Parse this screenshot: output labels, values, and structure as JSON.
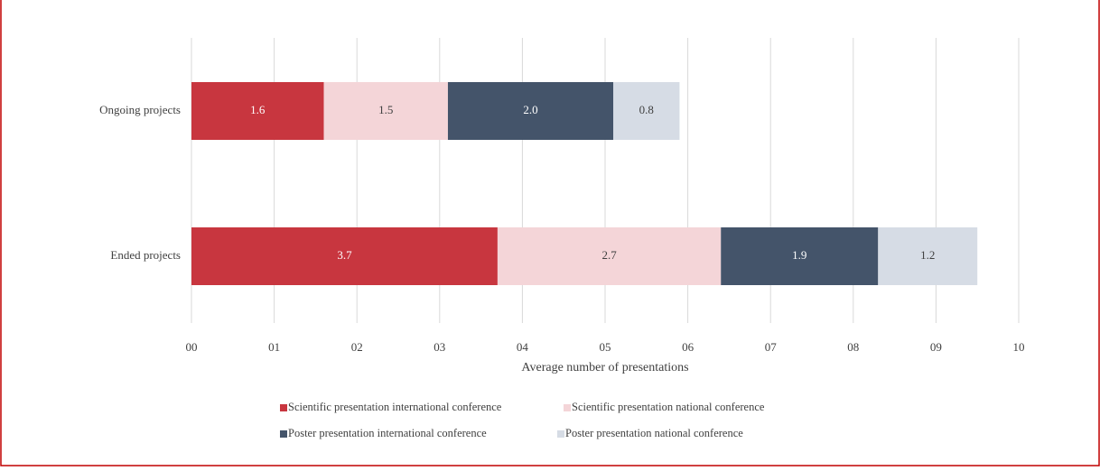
{
  "chart_data": {
    "type": "stacked-barh",
    "categories": [
      "Ongoing projects",
      "Ended projects"
    ],
    "series": [
      {
        "name": "Scientific presentation international conference",
        "color": "#c8363f",
        "values": [
          1.6,
          3.7
        ],
        "value_labels": [
          "1.6",
          "3.7"
        ]
      },
      {
        "name": "Scientific presentation national conference",
        "color": "#f4d5d8",
        "values": [
          1.5,
          2.7
        ],
        "value_labels": [
          "1.5",
          "2.7"
        ]
      },
      {
        "name": "Poster presentation international conference",
        "color": "#44546a",
        "values": [
          2.0,
          1.9
        ],
        "value_labels": [
          "2.0",
          "1.9"
        ]
      },
      {
        "name": "Poster presentation national conference",
        "color": "#d6dce5",
        "values": [
          0.8,
          1.2
        ],
        "value_labels": [
          "0.8",
          "1.2"
        ]
      }
    ],
    "xlabel": "Average number of presentations",
    "xlim": [
      0,
      10
    ],
    "xticks": [
      {
        "value": 0,
        "label": "00"
      },
      {
        "value": 1,
        "label": "01"
      },
      {
        "value": 2,
        "label": "02"
      },
      {
        "value": 3,
        "label": "03"
      },
      {
        "value": 4,
        "label": "04"
      },
      {
        "value": 5,
        "label": "05"
      },
      {
        "value": 6,
        "label": "06"
      },
      {
        "value": 7,
        "label": "07"
      },
      {
        "value": 8,
        "label": "08"
      },
      {
        "value": 9,
        "label": "09"
      },
      {
        "value": 10,
        "label": "10"
      }
    ],
    "grid": true,
    "legend": "bottom"
  }
}
